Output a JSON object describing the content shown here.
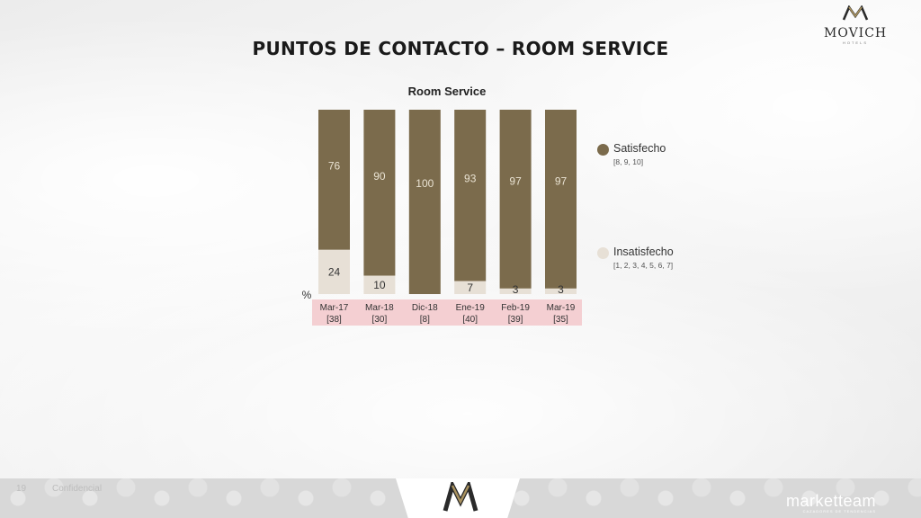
{
  "page": {
    "title": "PUNTOS DE CONTACTO – ROOM SERVICE",
    "brand": "MOVICH",
    "brand_sub": "HOTELS",
    "page_number": "19",
    "confidential": "Confidencial",
    "footer_brand": "marketteam",
    "footer_tag": "CAZADORES DE TENDENCIAS"
  },
  "colors": {
    "satisfied": "#7b6b4c",
    "unsatisfied": "#e7e0d6",
    "axis_band": "#f4cfd2",
    "brand_gold": "#a9925f"
  },
  "chart_data": {
    "type": "bar",
    "stacked": true,
    "title": "Room Service",
    "unit_label": "%",
    "categories": [
      "Mar-17",
      "Mar-18",
      "Dic-18",
      "Ene-19",
      "Feb-19",
      "Mar-19"
    ],
    "base_counts": [
      "[38]",
      "[30]",
      "[8]",
      "[40]",
      "[39]",
      "[35]"
    ],
    "ylim": [
      0,
      100
    ],
    "grid": false,
    "legend_position": "right",
    "series": [
      {
        "name": "Insatisfecho",
        "sub": "[1, 2, 3, 4, 5, 6, 7]",
        "values": [
          24,
          10,
          0,
          7,
          3,
          3
        ],
        "labels": [
          "24",
          "10",
          "",
          "7",
          "3",
          "3"
        ]
      },
      {
        "name": "Satisfecho",
        "sub": "[8, 9, 10]",
        "values": [
          76,
          90,
          100,
          93,
          97,
          97
        ],
        "labels": [
          "76",
          "90",
          "100",
          "93",
          "97",
          "97"
        ]
      }
    ]
  }
}
